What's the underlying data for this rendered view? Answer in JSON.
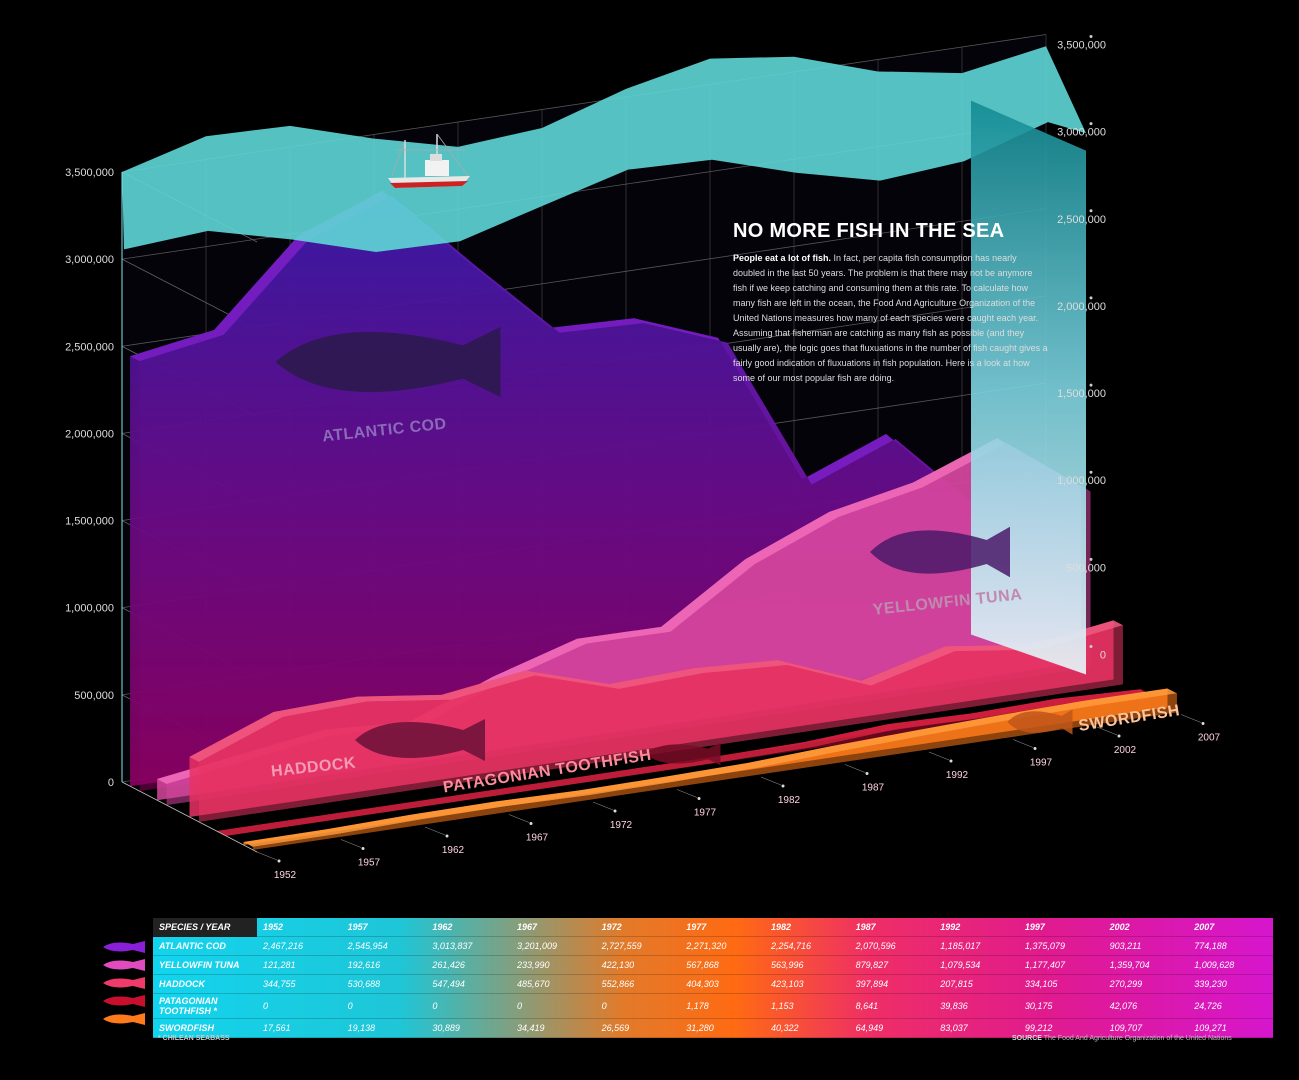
{
  "title": "NO MORE FISH IN THE SEA",
  "intro_lead": "People eat a lot of fish.",
  "intro_body": "In fact, per capita fish consumption has nearly doubled in the last 50 years. The problem is that there may not be anymore fish if we keep catching and consuming them at this rate. To calculate how many fish are left in the ocean, the Food And Agriculture Organization of the United Nations measures how many of each species were caught each year. Assuming that fisherman are catching as many fish as possible (and they usually are), the logic goes that fluxuations in the number of fish caught gives a fairly good indication of fluxuations in fish population. Here is a look at how some of our most popular fish are doing.",
  "table_header": "SPECIES / YEAR",
  "footnote": "* CHILEAN SEABASS",
  "source_label": "SOURCE",
  "source_text": "The Food And Agriculture Organization of the United Nations",
  "chart_data": {
    "type": "area",
    "title": "NO MORE FISH IN THE SEA",
    "x": [
      "1952",
      "1957",
      "1962",
      "1967",
      "1972",
      "1977",
      "1982",
      "1987",
      "1992",
      "1997",
      "2002",
      "2007"
    ],
    "y_ticks": [
      "0",
      "500,000",
      "1,000,000",
      "1,500,000",
      "2,000,000",
      "2,500,000",
      "3,000,000",
      "3,500,000"
    ],
    "ylim": [
      0,
      3500000
    ],
    "series": [
      {
        "name": "Atlantic Cod",
        "color": "#8a1fd8",
        "values_text": [
          "2,467,216",
          "2,545,954",
          "3,013,837",
          "3,201,009",
          "2,727,559",
          "2,271,320",
          "2,254,716",
          "2,070,596",
          "1,185,017",
          "1,375,079",
          "903,211",
          "774,188"
        ],
        "values": [
          2467216,
          2545954,
          3013837,
          3201009,
          2727559,
          2271320,
          2254716,
          2070596,
          1185017,
          1375079,
          903211,
          774188
        ]
      },
      {
        "name": "Yellowfin Tuna",
        "color": "#e04cbf",
        "values_text": [
          "121,281",
          "192,616",
          "261,426",
          "233,990",
          "422,130",
          "567,868",
          "563,996",
          "879,827",
          "1,079,534",
          "1,177,407",
          "1,359,704",
          "1,009,628"
        ],
        "values": [
          121281,
          192616,
          261426,
          233990,
          422130,
          567868,
          563996,
          879827,
          1079534,
          1177407,
          1359704,
          1009628
        ]
      },
      {
        "name": "Haddock",
        "color": "#ef3a6a",
        "values_text": [
          "344,755",
          "530,688",
          "547,494",
          "485,670",
          "552,866",
          "404,303",
          "423,103",
          "397,894",
          "207,815",
          "334,105",
          "270,299",
          "339,230"
        ],
        "values": [
          344755,
          530688,
          547494,
          485670,
          552866,
          404303,
          423103,
          397894,
          207815,
          334105,
          270299,
          339230
        ]
      },
      {
        "name": "Patagonian Toothfish *",
        "color": "#c8102e",
        "values_text": [
          "0",
          "0",
          "0",
          "0",
          "0",
          "1,178",
          "1,153",
          "8,641",
          "39,836",
          "30,175",
          "42,076",
          "24,726"
        ],
        "values": [
          0,
          0,
          0,
          0,
          0,
          1178,
          1153,
          8641,
          39836,
          30175,
          42076,
          24726
        ]
      },
      {
        "name": "Swordfish",
        "color": "#ff7a1a",
        "values_text": [
          "17,561",
          "19,138",
          "30,889",
          "34,419",
          "26,569",
          "31,280",
          "40,322",
          "64,949",
          "83,037",
          "99,212",
          "109,707",
          "109,271"
        ],
        "values": [
          17561,
          19138,
          30889,
          34419,
          26569,
          31280,
          40322,
          64949,
          83037,
          99212,
          109707,
          109271
        ]
      }
    ],
    "area_labels": [
      "ATLANTIC COD",
      "YELLOWFIN TUNA",
      "HADDOCK",
      "PATAGONIAN TOOTHFISH",
      "SWORDFISH"
    ],
    "grid": true
  }
}
